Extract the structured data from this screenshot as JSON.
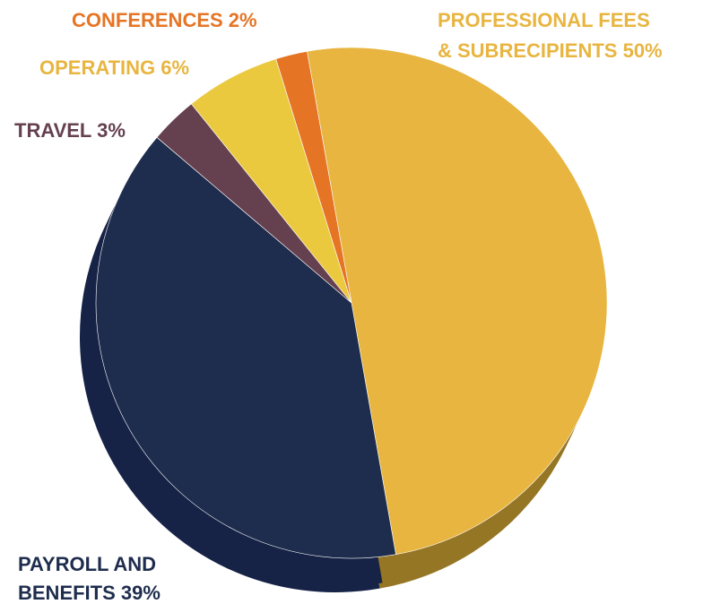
{
  "chart_data": {
    "type": "pie",
    "title": "",
    "categories": [
      "PROFESSIONAL FEES & SUBRECIPIENTS",
      "PAYROLL AND BENEFITS",
      "TRAVEL",
      "OPERATING",
      "CONFERENCES"
    ],
    "values": [
      50,
      39,
      3,
      6,
      2
    ],
    "unit": "%",
    "legend": "none",
    "colors": [
      "#e8b540",
      "#1e2d4d",
      "#65414f",
      "#ebc93f",
      "#e57525"
    ],
    "side_colors": [
      "#957624",
      "#162246",
      "#3e2833",
      "#9c8228",
      "#94491a"
    ],
    "labels": [
      {
        "lines": [
          "PROFESSIONAL FEES",
          "& SUBRECIPIENTS 50%"
        ],
        "color": "#e8b540"
      },
      {
        "lines": [
          "PAYROLL AND",
          "BENEFITS 39%"
        ],
        "color": "#1e2d4d"
      },
      {
        "lines": [
          "TRAVEL 3%"
        ],
        "color": "#65414f"
      },
      {
        "lines": [
          "OPERATING 6%"
        ],
        "color": "#e8b540"
      },
      {
        "lines": [
          "CONFERENCES 2%"
        ],
        "color": "#e57525"
      }
    ]
  }
}
